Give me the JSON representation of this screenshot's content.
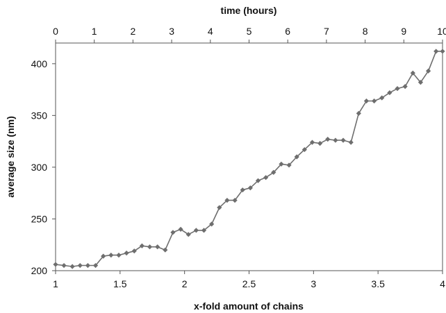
{
  "chart_data": {
    "type": "line",
    "xlabel": "x-fold amount of chains",
    "ylabel": "average size (nm)",
    "x2label": "time (hours)",
    "xlim": [
      1,
      4
    ],
    "ylim": [
      200,
      420
    ],
    "x2lim": [
      0,
      10
    ],
    "xticks": [
      "1",
      "1.5",
      "2",
      "2.5",
      "3",
      "3.5",
      "4"
    ],
    "yticks": [
      "200",
      "250",
      "300",
      "350",
      "400"
    ],
    "x2ticks": [
      "0",
      "1",
      "2",
      "3",
      "4",
      "5",
      "6",
      "7",
      "8",
      "9",
      "10"
    ],
    "grid": false,
    "legend": "none",
    "colors": {
      "line": "#6e6e6e",
      "marker": "#6e6e6e",
      "axis": "#555555"
    },
    "series": [
      {
        "x": [
          1.0,
          1.065,
          1.13,
          1.19,
          1.25,
          1.31,
          1.37,
          1.43,
          1.49,
          1.55,
          1.61,
          1.67,
          1.73,
          1.79,
          1.85,
          1.91,
          1.97,
          2.03,
          2.09,
          2.15,
          2.21,
          2.27,
          2.33,
          2.39,
          2.45,
          2.51,
          2.57,
          2.63,
          2.69,
          2.75,
          2.81,
          2.87,
          2.93,
          2.99,
          3.05,
          3.11,
          3.17,
          3.23,
          3.29,
          3.35,
          3.41,
          3.47,
          3.53,
          3.59,
          3.65,
          3.71,
          3.77,
          3.83,
          3.89,
          3.95,
          4.0
        ],
        "y": [
          206,
          205,
          204,
          205,
          205,
          205,
          214,
          215,
          215,
          217,
          219,
          224,
          223,
          223,
          220,
          237,
          240,
          235,
          239,
          239,
          245,
          261,
          268,
          268,
          278,
          280,
          287,
          290,
          295,
          303,
          302,
          310,
          317,
          324,
          323,
          327,
          326,
          326,
          324,
          352,
          364,
          364,
          367,
          372,
          376,
          378,
          391,
          382,
          393,
          412,
          412
        ]
      }
    ]
  }
}
